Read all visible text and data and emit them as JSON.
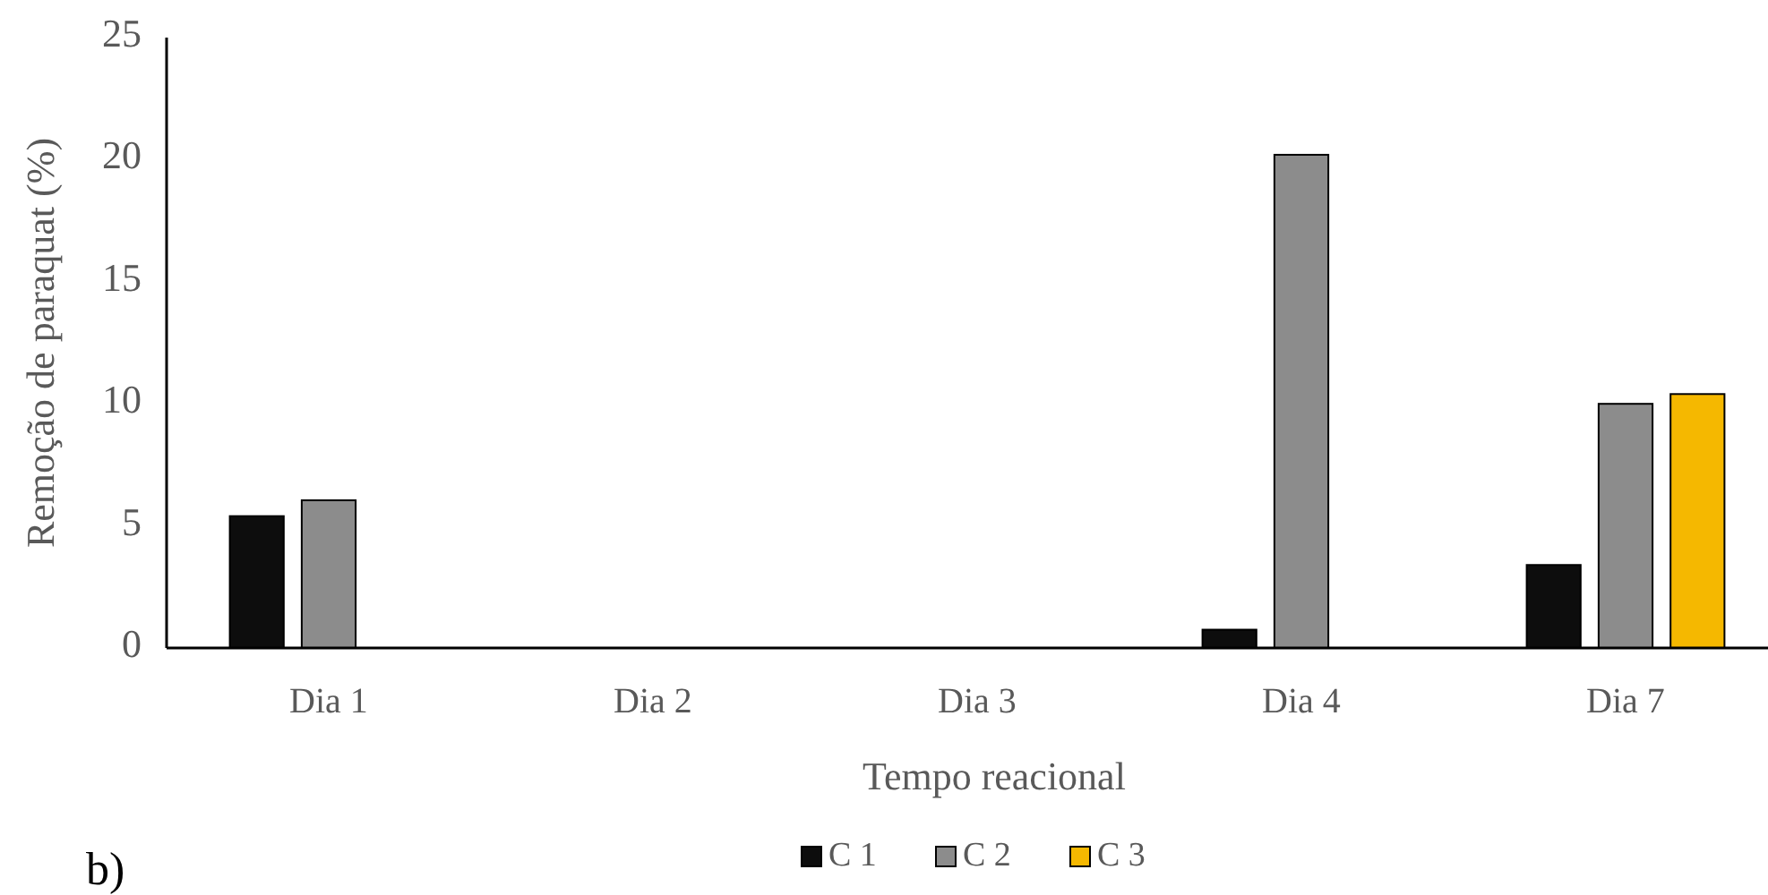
{
  "chart_data": {
    "type": "bar",
    "xlabel": "Tempo reacional",
    "ylabel": "Remoção de paraquat (%)",
    "categories": [
      "Dia 1",
      "Dia 2",
      "Dia 3",
      "Dia 4",
      "Dia 7"
    ],
    "series": [
      {
        "name": "C 1",
        "color": "#0d0d0d",
        "values": [
          5.4,
          null,
          null,
          0.75,
          3.4
        ]
      },
      {
        "name": "C 2",
        "color": "#8c8c8c",
        "values": [
          6.05,
          null,
          null,
          20.2,
          10.0
        ]
      },
      {
        "name": "C 3",
        "color": "#f5b800",
        "values": [
          null,
          null,
          null,
          null,
          10.4
        ]
      }
    ],
    "ylim": [
      0,
      25
    ],
    "yticks": [
      0,
      5,
      10,
      15,
      20,
      25
    ],
    "grid": false,
    "legend": "bottom",
    "annotations": [
      "b)"
    ]
  }
}
